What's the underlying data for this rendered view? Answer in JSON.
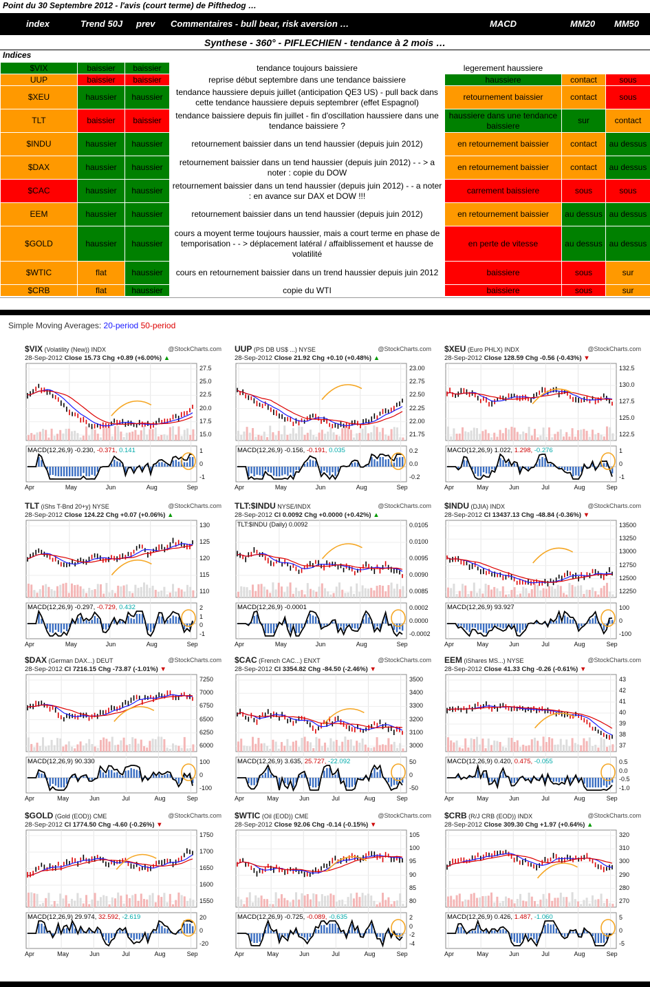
{
  "sheet": {
    "title": "Point du 30 Septembre 2012 - l'avis (court terme) de Pifthedog …",
    "columns": [
      "index",
      "Trend 50J",
      "prev",
      "Commentaires - bull bear, risk aversion …",
      "MACD",
      "MM20",
      "MM50"
    ],
    "synthese": "Synthese - 360° - PIFLECHIEN - tendance à 2 mois …",
    "indices_label": "Indices",
    "rows": [
      {
        "index": "$VIX",
        "trend": "baissier",
        "prev": "baissier",
        "comment": "tendance toujours baissiere",
        "macd": "legerement haussiere",
        "mm20": "",
        "mm50": "",
        "c": [
          "g",
          "g",
          "g",
          "w",
          "w",
          "w",
          "w"
        ]
      },
      {
        "index": "UUP",
        "trend": "baissier",
        "prev": "baissier",
        "comment": "reprise début septembre dans une tendance baissiere",
        "macd": "haussiere",
        "mm20": "contact",
        "mm50": "sous",
        "c": [
          "o",
          "r",
          "r",
          "w",
          "g",
          "o",
          "r"
        ]
      },
      {
        "index": "$XEU",
        "trend": "haussier",
        "prev": "haussier",
        "comment": "tendance haussiere depuis juillet (anticipation QE3 US) - pull back dans cette tendance haussiere depuis septembrer (effet Espagnol)",
        "macd": "retournement baissier",
        "mm20": "contact",
        "mm50": "sous",
        "c": [
          "o",
          "g",
          "g",
          "w",
          "o",
          "o",
          "r"
        ]
      },
      {
        "index": "TLT",
        "trend": "baissier",
        "prev": "baissier",
        "comment": "tendance baissiere depuis fin juillet - fin d'oscillation haussiere dans une tendance baissiere ?",
        "macd": "haussiere dans une tendance baissiere",
        "mm20": "sur",
        "mm50": "contact",
        "c": [
          "o",
          "r",
          "r",
          "w",
          "g",
          "g",
          "o"
        ]
      },
      {
        "index": "$INDU",
        "trend": "haussier",
        "prev": "haussier",
        "comment": "retournement baissier dans un tend haussier (depuis juin 2012)",
        "macd": "en retournement baissier",
        "mm20": "contact",
        "mm50": "au dessus",
        "c": [
          "o",
          "g",
          "g",
          "w",
          "o",
          "o",
          "g"
        ]
      },
      {
        "index": "$DAX",
        "trend": "haussier",
        "prev": "haussier",
        "comment": "retournement baissier dans un tend haussier (depuis juin 2012) - - > a noter : copie du DOW",
        "macd": "en retournement baissier",
        "mm20": "contact",
        "mm50": "au dessus",
        "c": [
          "o",
          "g",
          "g",
          "w",
          "o",
          "o",
          "g"
        ]
      },
      {
        "index": "$CAC",
        "trend": "haussier",
        "prev": "haussier",
        "comment": "retournement baissier dans un tend haussier (depuis juin 2012) - - a noter : en avance sur DAX et DOW !!!",
        "macd": "carrement baissiere",
        "mm20": "sous",
        "mm50": "sous",
        "c": [
          "r",
          "g",
          "g",
          "w",
          "r",
          "r",
          "r"
        ]
      },
      {
        "index": "EEM",
        "trend": "haussier",
        "prev": "haussier",
        "comment": "retournement baissier dans un tend haussier (depuis juin 2012)",
        "macd": "en retournement baissier",
        "mm20": "au dessus",
        "mm50": "au dessus",
        "c": [
          "o",
          "g",
          "g",
          "w",
          "o",
          "g",
          "g"
        ]
      },
      {
        "index": "$GOLD",
        "trend": "haussier",
        "prev": "haussier",
        "comment": "cours a moyent terme toujours haussier, mais a court terme en phase de temporisation - - > déplacement latéral / affaiblissement et hausse de volatilité",
        "macd": "en perte de vitesse",
        "mm20": "au dessus",
        "mm50": "au dessus",
        "c": [
          "o",
          "g",
          "g",
          "w",
          "r",
          "g",
          "g"
        ]
      },
      {
        "index": "$WTIC",
        "trend": "flat",
        "prev": "haussier",
        "comment": "cours en retournement baissier dans un trend haussier depuis juin 2012",
        "macd": "baissiere",
        "mm20": "sous",
        "mm50": "sur",
        "c": [
          "o",
          "o",
          "g",
          "w",
          "r",
          "r",
          "o"
        ]
      },
      {
        "index": "$CRB",
        "trend": "flat",
        "prev": "haussier",
        "comment": "copie du WTI",
        "macd": "baissiere",
        "mm20": "sous",
        "mm50": "sur",
        "c": [
          "o",
          "o",
          "g",
          "w",
          "r",
          "r",
          "o"
        ]
      }
    ]
  },
  "sma": {
    "prefix": "Simple Moving Averages:",
    "p20": "20-period",
    "p50": "50-period"
  },
  "colors": {
    "orange": "#FF9900",
    "green": "#008000",
    "red": "#FF0000",
    "ma20": "#1a1aff",
    "ma50": "#dd0000",
    "annot": "#F5A623"
  },
  "chart_data": [
    {
      "type": "line",
      "sym": "$VIX",
      "desc": "(Volatility (New))",
      "exch": "INDX",
      "src": "@StockCharts.com",
      "date": "28-Sep-2012",
      "stat": "Close 15.73",
      "chg": "Chg +0.89 (+6.00%)",
      "up": true,
      "yticks": [
        "27.5",
        "25.0",
        "22.5",
        "20.0",
        "17.5",
        "15.0"
      ],
      "macd": "MACD(12,26,9)",
      "m1": "-0.230,",
      "m2": "-0.371,",
      "m3": "0.141",
      "mticks": [
        "1",
        "0",
        "-1"
      ],
      "xticks": [
        "Apr",
        "May",
        "Jun",
        "Aug",
        "Sep"
      ],
      "seed": 3
    },
    {
      "type": "line",
      "sym": "UUP",
      "desc": "(PS DB US$ ...)",
      "exch": "NYSE",
      "src": "@StockCharts.com",
      "date": "28-Sep-2012",
      "stat": "Close 21.92",
      "chg": "Chg +0.10 (+0.48%)",
      "up": true,
      "yticks": [
        "23.00",
        "22.75",
        "22.50",
        "22.25",
        "22.00",
        "21.75"
      ],
      "macd": "MACD(12,26,9)",
      "m1": "-0.156,",
      "m2": "-0.191,",
      "m3": "0.035",
      "mticks": [
        "0.2",
        "0.0",
        "-0.2"
      ],
      "xticks": [
        "Apr",
        "May",
        "Jun",
        "Aug",
        "Sep"
      ],
      "seed": 7
    },
    {
      "type": "line",
      "sym": "$XEU",
      "desc": "(Euro PHLX)",
      "exch": "INDX",
      "src": "@StockCharts.com",
      "date": "28-Sep-2012",
      "stat": "Close 128.59",
      "chg": "Chg -0.56 (-0.43%)",
      "up": false,
      "yticks": [
        "132.5",
        "130.0",
        "127.5",
        "125.0",
        "122.5"
      ],
      "macd": "MACD(12,26,9)",
      "m1": "1.022,",
      "m2": "1.298,",
      "m3": "-0.276",
      "mticks": [
        "1",
        "0",
        "-1"
      ],
      "xticks": [
        "Apr",
        "May",
        "Jun",
        "Jul",
        "Aug",
        "Sep"
      ],
      "seed": 11
    },
    {
      "type": "line",
      "sym": "TLT",
      "desc": "(iShs T-Bnd 20+y)",
      "exch": "NYSE",
      "src": "@StockCharts.com",
      "date": "28-Sep-2012",
      "stat": "Close 124.22",
      "chg": "Chg +0.07 (+0.06%)",
      "up": true,
      "yticks": [
        "130",
        "125",
        "120",
        "115",
        "110"
      ],
      "macd": "MACD(12,26,9)",
      "m1": "-0.297,",
      "m2": "-0.729,",
      "m3": "0.432",
      "mticks": [
        "2",
        "1",
        "0",
        "-1"
      ],
      "xticks": [
        "Apr",
        "May",
        "Jun",
        "Aug",
        "Sep"
      ],
      "seed": 5
    },
    {
      "type": "line",
      "sym": "TLT:$INDU",
      "desc": "",
      "exch": "NYSE/INDX",
      "src": "@StockCharts.com",
      "date": "28-Sep-2012",
      "stat": "Cl 0.0092",
      "chg": "Chg +0.0000 (+0.42%)",
      "up": true,
      "note": "TLT:$INDU (Daily) 0.0092",
      "yticks": [
        "0.0105",
        "0.0100",
        "0.0095",
        "0.0090",
        "0.0085"
      ],
      "macd": "MACD(12,26,9)",
      "m1": "-0.0001",
      "m2": "",
      "m3": "",
      "mticks": [
        "0.0002",
        "0.0000",
        "-0.0002"
      ],
      "xticks": [
        "Apr",
        "May",
        "Jun",
        "Aug",
        "Sep"
      ],
      "seed": 9
    },
    {
      "type": "line",
      "sym": "$INDU",
      "desc": "(DJIA)",
      "exch": "INDX",
      "src": "@StockCharts.com",
      "date": "28-Sep-2012",
      "stat": "Cl 13437.13",
      "chg": "Chg -48.84 (-0.36%)",
      "up": false,
      "yticks": [
        "13500",
        "13250",
        "13000",
        "12750",
        "12500",
        "12250"
      ],
      "macd": "MACD(12,26,9)",
      "m1": "93.927",
      "m2": "",
      "m3": "",
      "mticks": [
        "100",
        "0",
        "-100"
      ],
      "xticks": [
        "Apr",
        "May",
        "Jun",
        "Jul",
        "Aug",
        "Sep"
      ],
      "seed": 13
    },
    {
      "type": "line",
      "sym": "$DAX",
      "desc": "(German DAX...)",
      "exch": "DEUT",
      "src": "@StockCharts.com",
      "date": "28-Sep-2012",
      "stat": "Cl 7216.15",
      "chg": "Chg -73.87 (-1.01%)",
      "up": false,
      "yticks": [
        "7250",
        "7000",
        "6750",
        "6500",
        "6250",
        "6000"
      ],
      "macd": "MACD(12,26,9)",
      "m1": "90.330",
      "m2": "",
      "m3": "",
      "mticks": [
        "100",
        "0",
        "-100"
      ],
      "xticks": [
        "Apr",
        "May",
        "Jun",
        "Jul",
        "Aug",
        "Sep"
      ],
      "seed": 17
    },
    {
      "type": "line",
      "sym": "$CAC",
      "desc": "(French CAC...)",
      "exch": "ENXT",
      "src": "@StockCharts.com",
      "date": "28-Sep-2012",
      "stat": "Cl 3354.82",
      "chg": "Chg -84.50 (-2.46%)",
      "up": false,
      "yticks": [
        "3500",
        "3400",
        "3300",
        "3200",
        "3100",
        "3000"
      ],
      "macd": "MACD(12,26,9)",
      "m1": "3.635,",
      "m2": "25.727,",
      "m3": "-22.092",
      "mticks": [
        "50",
        "0",
        "-50"
      ],
      "xticks": [
        "Apr",
        "May",
        "Jun",
        "Jul",
        "Aug",
        "Sep"
      ],
      "seed": 19
    },
    {
      "type": "line",
      "sym": "EEM",
      "desc": "(iShares MS...)",
      "exch": "NYSE",
      "src": "@StockCharts.com",
      "date": "28-Sep-2012",
      "stat": "Close 41.33",
      "chg": "Chg -0.26 (-0.61%)",
      "up": false,
      "yticks": [
        "43",
        "42",
        "41",
        "40",
        "39",
        "38",
        "37"
      ],
      "macd": "MACD(12,26,9)",
      "m1": "0.420,",
      "m2": "0.475,",
      "m3": "-0.055",
      "mticks": [
        "0.5",
        "0.0",
        "-0.5",
        "-1.0"
      ],
      "xticks": [
        "Apr",
        "May",
        "Jun",
        "Jul",
        "Aug",
        "Sep"
      ],
      "seed": 23
    },
    {
      "type": "line",
      "sym": "$GOLD",
      "desc": "(Gold (EOD))",
      "exch": "CME",
      "src": "@StockCharts.com",
      "date": "28-Sep-2012",
      "stat": "Cl 1774.50",
      "chg": "Chg -4.60 (-0.26%)",
      "up": false,
      "yticks": [
        "1750",
        "1700",
        "1650",
        "1600",
        "1550"
      ],
      "macd": "MACD(12,26,9)",
      "m1": "29.974,",
      "m2": "32.592,",
      "m3": "-2.619",
      "mticks": [
        "20",
        "0",
        "-20"
      ],
      "xticks": [
        "Apr",
        "May",
        "Jun",
        "Jul",
        "Aug",
        "Sep"
      ],
      "seed": 29
    },
    {
      "type": "line",
      "sym": "$WTIC",
      "desc": "(Oil (EOD))",
      "exch": "CME",
      "src": "@StockCharts.com",
      "date": "28-Sep-2012",
      "stat": "Close 92.06",
      "chg": "Chg -0.14 (-0.15%)",
      "up": false,
      "yticks": [
        "105",
        "100",
        "95",
        "90",
        "85",
        "80"
      ],
      "macd": "MACD(12,26,9)",
      "m1": "-0.725,",
      "m2": "-0.089,",
      "m3": "-0.635",
      "mticks": [
        "2",
        "0",
        "-2",
        "-4"
      ],
      "xticks": [
        "Apr",
        "May",
        "Jun",
        "Jul",
        "Aug",
        "Sep"
      ],
      "seed": 31
    },
    {
      "type": "line",
      "sym": "$CRB",
      "desc": "(R/J CRB (EOD))",
      "exch": "INDX",
      "src": "@StockCharts.com",
      "date": "28-Sep-2012",
      "stat": "Close 309.30",
      "chg": "Chg +1.97 (+0.64%)",
      "up": true,
      "yticks": [
        "320",
        "310",
        "300",
        "290",
        "280",
        "270"
      ],
      "macd": "MACD(12,26,9)",
      "m1": "0.426,",
      "m2": "1.487,",
      "m3": "-1.060",
      "mticks": [
        "5",
        "0",
        "-5"
      ],
      "xticks": [
        "Apr",
        "May",
        "Jun",
        "Jul",
        "Aug",
        "Sep"
      ],
      "seed": 37
    }
  ]
}
